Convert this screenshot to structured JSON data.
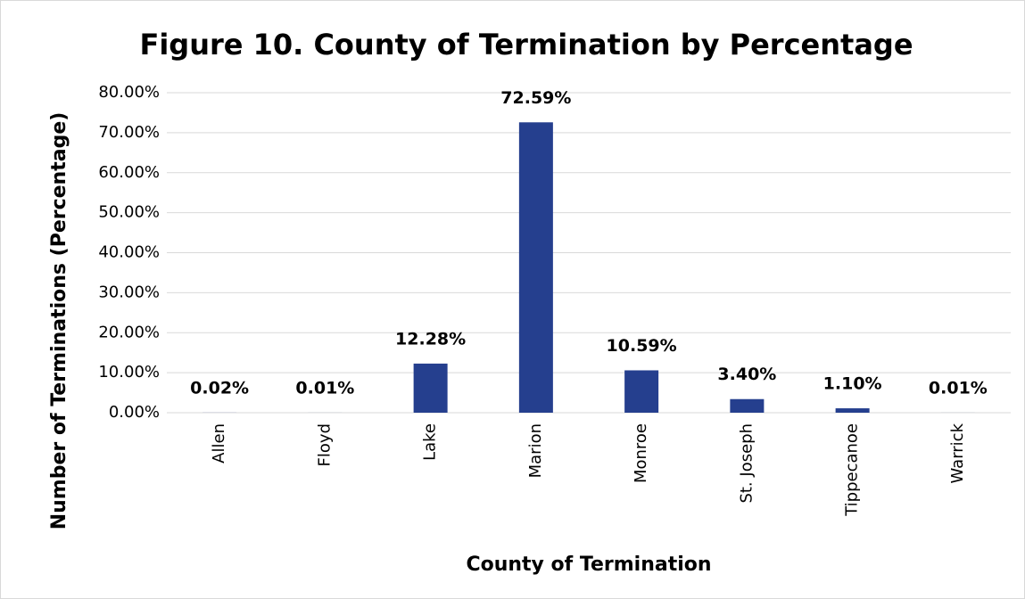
{
  "chart_data": {
    "type": "bar",
    "title": "Figure 10. County of Termination by Percentage",
    "x_label": "County of Termination",
    "y_label": "Number of Terminations (Percentage)",
    "categories": [
      "Allen",
      "Floyd",
      "Lake",
      "Marion",
      "Monroe",
      "St. Joseph",
      "Tippecanoe",
      "Warrick"
    ],
    "values": [
      0.02,
      0.01,
      12.28,
      72.59,
      10.59,
      3.4,
      1.1,
      0.01
    ],
    "value_labels": [
      "0.02%",
      "0.01%",
      "12.28%",
      "72.59%",
      "10.59%",
      "3.40%",
      "1.10%",
      "0.01%"
    ],
    "color": "#253f8e",
    "ylim": [
      0,
      80
    ],
    "yticks": [
      {
        "value": 0,
        "label": "0.00%"
      },
      {
        "value": 10,
        "label": "10.00%"
      },
      {
        "value": 20,
        "label": "20.00%"
      },
      {
        "value": 30,
        "label": "30.00%"
      },
      {
        "value": 40,
        "label": "40.00%"
      },
      {
        "value": 50,
        "label": "50.00%"
      },
      {
        "value": 60,
        "label": "60.00%"
      },
      {
        "value": 70,
        "label": "70.00%"
      },
      {
        "value": 80,
        "label": "80.00%"
      }
    ],
    "grid": true
  }
}
